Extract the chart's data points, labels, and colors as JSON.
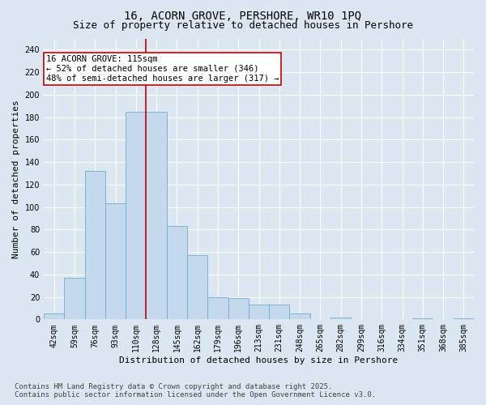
{
  "title_line1": "16, ACORN GROVE, PERSHORE, WR10 1PQ",
  "title_line2": "Size of property relative to detached houses in Pershore",
  "xlabel": "Distribution of detached houses by size in Pershore",
  "ylabel": "Number of detached properties",
  "categories": [
    "42sqm",
    "59sqm",
    "76sqm",
    "93sqm",
    "110sqm",
    "128sqm",
    "145sqm",
    "162sqm",
    "179sqm",
    "196sqm",
    "213sqm",
    "231sqm",
    "248sqm",
    "265sqm",
    "282sqm",
    "299sqm",
    "316sqm",
    "334sqm",
    "351sqm",
    "368sqm",
    "385sqm"
  ],
  "values": [
    5,
    37,
    132,
    103,
    185,
    185,
    83,
    57,
    20,
    19,
    13,
    13,
    5,
    0,
    2,
    0,
    0,
    0,
    1,
    0,
    1
  ],
  "bar_color": "#c5d9ed",
  "bar_edge_color": "#6baed6",
  "background_color": "#dce6f1",
  "grid_color": "#ffffff",
  "annotation_line1": "16 ACORN GROVE: 115sqm",
  "annotation_line2": "← 52% of detached houses are smaller (346)",
  "annotation_line3": "48% of semi-detached houses are larger (317) →",
  "annotation_box_facecolor": "#ffffff",
  "annotation_box_edgecolor": "#cc0000",
  "vline_color": "#cc0000",
  "vline_x": 4.5,
  "ylim": [
    0,
    250
  ],
  "yticks": [
    0,
    20,
    40,
    60,
    80,
    100,
    120,
    140,
    160,
    180,
    200,
    220,
    240
  ],
  "footer_text": "Contains HM Land Registry data © Crown copyright and database right 2025.\nContains public sector information licensed under the Open Government Licence v3.0.",
  "title_fontsize": 10,
  "subtitle_fontsize": 9,
  "xlabel_fontsize": 8,
  "ylabel_fontsize": 8,
  "tick_fontsize": 7,
  "annotation_fontsize": 7.5,
  "footer_fontsize": 6.5
}
